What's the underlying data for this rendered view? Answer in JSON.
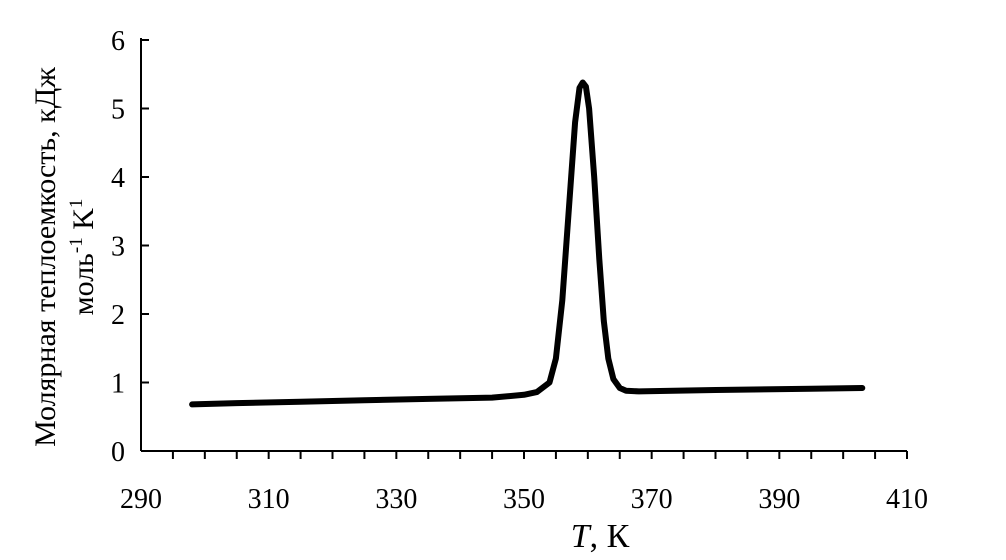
{
  "chart_data": {
    "type": "line",
    "title": "",
    "xlabel": {
      "italic": "T",
      "rest": ", К"
    },
    "ylabel": {
      "line1": "Молярная теплоемкость, кДж",
      "line2_a": "моль",
      "line2_sup1": "-1",
      "line2_b": " K",
      "line2_sup2": "1"
    },
    "xlim": [
      290,
      410
    ],
    "ylim": [
      0,
      6
    ],
    "x_major_ticks": [
      290,
      310,
      330,
      350,
      370,
      390,
      410
    ],
    "x_minor_step": 5,
    "y_ticks": [
      0,
      1,
      2,
      3,
      4,
      5,
      6
    ],
    "grid": false,
    "legend": "none",
    "series": [
      {
        "color": "#000000",
        "x": [
          298,
          305,
          315,
          325,
          335,
          345,
          350,
          352,
          354,
          355,
          356,
          357,
          358,
          358.7,
          359.2,
          359.7,
          360.2,
          361,
          361.8,
          362.5,
          363.2,
          364,
          365,
          366,
          368,
          380,
          395,
          403
        ],
        "y": [
          0.68,
          0.7,
          0.72,
          0.74,
          0.76,
          0.78,
          0.82,
          0.86,
          1.0,
          1.35,
          2.2,
          3.5,
          4.8,
          5.3,
          5.38,
          5.32,
          5.0,
          4.0,
          2.8,
          1.9,
          1.35,
          1.05,
          0.92,
          0.88,
          0.87,
          0.89,
          0.91,
          0.92
        ]
      }
    ]
  }
}
